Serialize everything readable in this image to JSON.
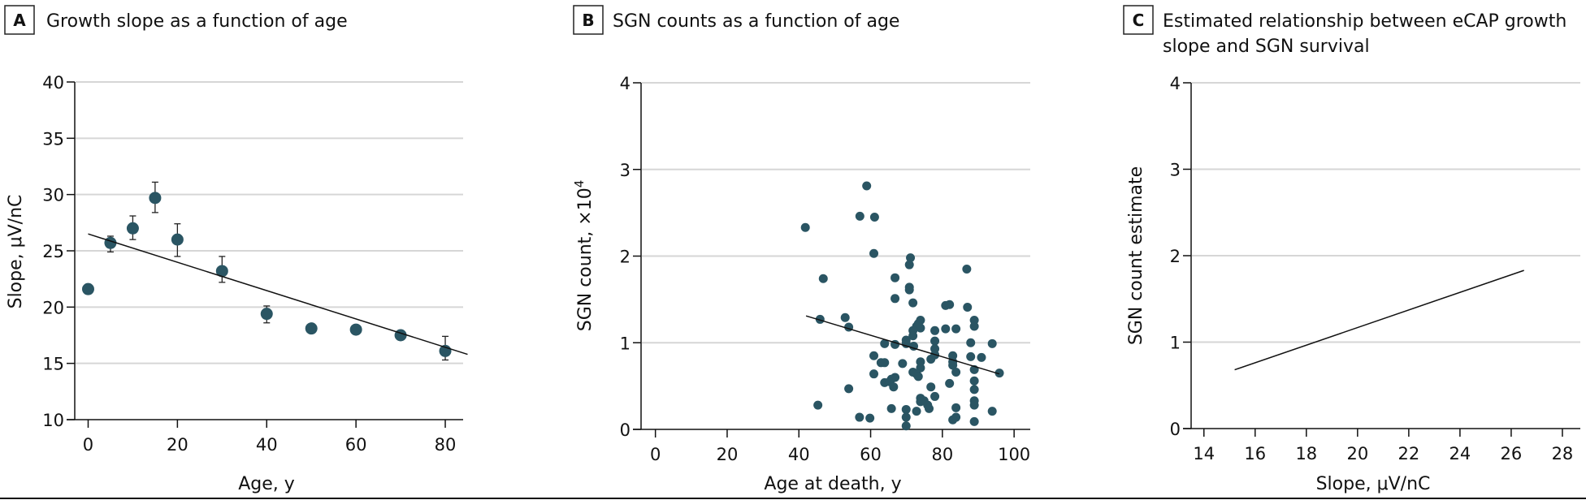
{
  "chart_data": [
    {
      "panel": "A",
      "type": "scatter",
      "title": "Growth slope as a function of age",
      "xlabel": "Age, y",
      "ylabel": "Slope, μV/nC",
      "xlim": [
        -3,
        84
      ],
      "ylim": [
        10,
        40
      ],
      "xticks": [
        0,
        20,
        40,
        60,
        80
      ],
      "yticks": [
        10,
        15,
        20,
        25,
        30,
        35,
        40
      ],
      "grid": "horizontal",
      "points": [
        {
          "x": 0,
          "y": 21.6,
          "lo": null,
          "hi": null
        },
        {
          "x": 5,
          "y": 25.7,
          "lo": 24.9,
          "hi": 26.3
        },
        {
          "x": 10,
          "y": 27.0,
          "lo": 26.0,
          "hi": 28.1
        },
        {
          "x": 15,
          "y": 29.7,
          "lo": 28.4,
          "hi": 31.1
        },
        {
          "x": 20,
          "y": 26.0,
          "lo": 24.5,
          "hi": 27.4
        },
        {
          "x": 30,
          "y": 23.2,
          "lo": 22.2,
          "hi": 24.5
        },
        {
          "x": 40,
          "y": 19.4,
          "lo": 18.6,
          "hi": 20.1
        },
        {
          "x": 50,
          "y": 18.1,
          "lo": null,
          "hi": null
        },
        {
          "x": 60,
          "y": 18.0,
          "lo": null,
          "hi": null
        },
        {
          "x": 70,
          "y": 17.5,
          "lo": null,
          "hi": null
        },
        {
          "x": 80,
          "y": 16.1,
          "lo": 15.3,
          "hi": 17.4
        }
      ],
      "fit_line": {
        "x": [
          0,
          85
        ],
        "y": [
          26.5,
          15.8
        ]
      }
    },
    {
      "panel": "B",
      "type": "scatter",
      "title": "SGN counts as a function of age",
      "xlabel": "Age at death, y",
      "ylabel": "SGN count, ×10",
      "ylabel_superscript": "4",
      "xlim": [
        -4,
        104.5
      ],
      "ylim": [
        0,
        4
      ],
      "xticks": [
        0,
        20,
        40,
        60,
        80,
        100
      ],
      "yticks": [
        0,
        1,
        2,
        3,
        4
      ],
      "grid": "horizontal",
      "points": [
        [
          41.8,
          2.33
        ],
        [
          58.9,
          2.81
        ],
        [
          57.0,
          2.46
        ],
        [
          61.1,
          2.45
        ],
        [
          60.9,
          2.03
        ],
        [
          46.8,
          1.74
        ],
        [
          71.1,
          1.98
        ],
        [
          70.8,
          1.9
        ],
        [
          86.8,
          1.85
        ],
        [
          66.8,
          1.75
        ],
        [
          70.8,
          1.64
        ],
        [
          70.8,
          1.61
        ],
        [
          66.8,
          1.51
        ],
        [
          71.8,
          1.46
        ],
        [
          80.9,
          1.43
        ],
        [
          82.0,
          1.44
        ],
        [
          87.0,
          1.41
        ],
        [
          45.9,
          1.27
        ],
        [
          52.9,
          1.29
        ],
        [
          53.9,
          1.18
        ],
        [
          73.9,
          1.26
        ],
        [
          73.3,
          1.22
        ],
        [
          72.8,
          1.19
        ],
        [
          73.9,
          1.17
        ],
        [
          71.8,
          1.14
        ],
        [
          88.9,
          1.26
        ],
        [
          88.9,
          1.19
        ],
        [
          77.9,
          1.14
        ],
        [
          80.9,
          1.16
        ],
        [
          83.8,
          1.16
        ],
        [
          71.8,
          1.08
        ],
        [
          69.9,
          1.03
        ],
        [
          63.9,
          0.99
        ],
        [
          66.8,
          0.98
        ],
        [
          69.9,
          0.99
        ],
        [
          72.0,
          0.96
        ],
        [
          77.9,
          1.02
        ],
        [
          87.9,
          1.0
        ],
        [
          93.9,
          0.99
        ],
        [
          77.9,
          0.93
        ],
        [
          77.9,
          0.86
        ],
        [
          60.9,
          0.85
        ],
        [
          82.9,
          0.85
        ],
        [
          87.9,
          0.84
        ],
        [
          90.9,
          0.83
        ],
        [
          76.8,
          0.81
        ],
        [
          62.9,
          0.77
        ],
        [
          63.9,
          0.77
        ],
        [
          68.9,
          0.76
        ],
        [
          73.9,
          0.78
        ],
        [
          82.9,
          0.78
        ],
        [
          82.9,
          0.74
        ],
        [
          73.9,
          0.71
        ],
        [
          88.9,
          0.69
        ],
        [
          83.8,
          0.66
        ],
        [
          95.9,
          0.65
        ],
        [
          60.9,
          0.64
        ],
        [
          71.8,
          0.66
        ],
        [
          72.8,
          0.64
        ],
        [
          73.3,
          0.61
        ],
        [
          66.8,
          0.6
        ],
        [
          65.8,
          0.58
        ],
        [
          63.9,
          0.54
        ],
        [
          65.3,
          0.55
        ],
        [
          66.4,
          0.49
        ],
        [
          82.0,
          0.53
        ],
        [
          88.9,
          0.56
        ],
        [
          88.9,
          0.46
        ],
        [
          76.8,
          0.49
        ],
        [
          53.9,
          0.47
        ],
        [
          77.9,
          0.38
        ],
        [
          73.9,
          0.36
        ],
        [
          74.9,
          0.33
        ],
        [
          73.9,
          0.32
        ],
        [
          75.9,
          0.28
        ],
        [
          76.3,
          0.24
        ],
        [
          88.9,
          0.33
        ],
        [
          88.9,
          0.28
        ],
        [
          45.3,
          0.28
        ],
        [
          65.8,
          0.24
        ],
        [
          69.9,
          0.23
        ],
        [
          72.8,
          0.21
        ],
        [
          83.8,
          0.25
        ],
        [
          93.9,
          0.21
        ],
        [
          56.9,
          0.14
        ],
        [
          59.8,
          0.13
        ],
        [
          69.9,
          0.14
        ],
        [
          83.8,
          0.14
        ],
        [
          82.9,
          0.11
        ],
        [
          88.9,
          0.09
        ],
        [
          69.9,
          0.04
        ]
      ],
      "fit_line": {
        "x": [
          42.0,
          95.9
        ],
        "y": [
          1.31,
          0.64
        ]
      }
    },
    {
      "panel": "C",
      "type": "line",
      "title": "Estimated relationship between eCAP growth slope and SGN survival",
      "title_lines": [
        "Estimated relationship between eCAP growth",
        "slope and SGN survival"
      ],
      "xlabel": "Slope, μV/nC",
      "ylabel": "SGN count estimate",
      "xlim": [
        13.5,
        28.7
      ],
      "ylim": [
        0,
        4
      ],
      "xticks": [
        14,
        16,
        18,
        20,
        22,
        24,
        26,
        28
      ],
      "yticks": [
        0,
        1,
        2,
        3,
        4
      ],
      "grid": "horizontal",
      "line": {
        "x": [
          15.2,
          26.5
        ],
        "y": [
          0.68,
          1.83
        ]
      }
    }
  ]
}
